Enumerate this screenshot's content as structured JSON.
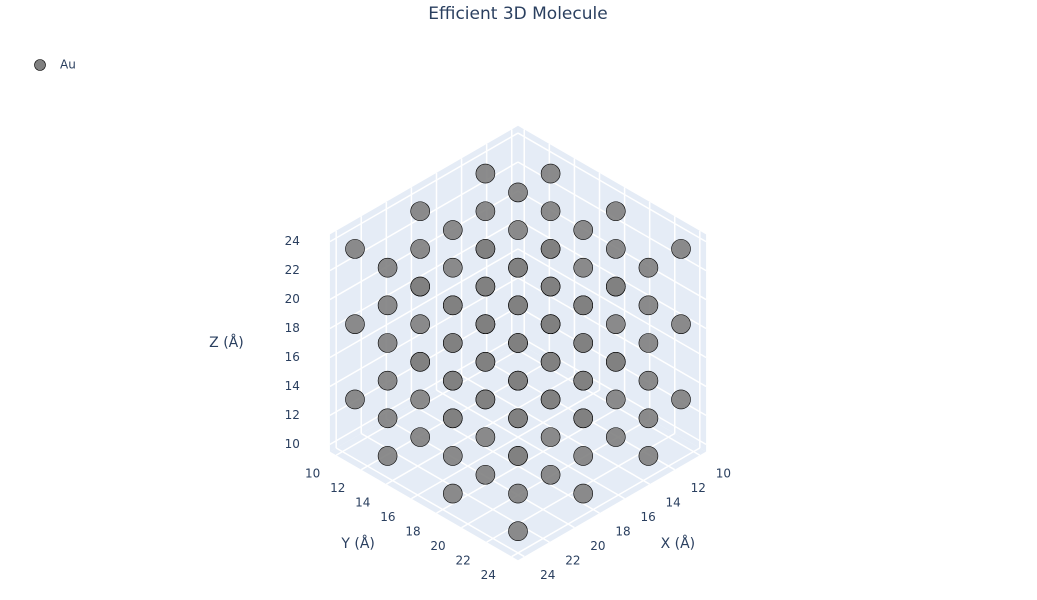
{
  "chart_data": {
    "type": "scatter3d",
    "title": "Efficient 3D Molecule",
    "xaxis_title": "X (Å)",
    "yaxis_title": "Y (Å)",
    "zaxis_title": "Z (Å)",
    "xlim": [
      9.5,
      24.5
    ],
    "ylim": [
      9.5,
      24.5
    ],
    "zlim": [
      9.5,
      24.5
    ],
    "xticks": [
      10,
      12,
      14,
      16,
      18,
      20,
      22,
      24
    ],
    "yticks": [
      10,
      12,
      14,
      16,
      18,
      20,
      22,
      24
    ],
    "zticks": [
      10,
      12,
      14,
      16,
      18,
      20,
      22,
      24
    ],
    "grid": true,
    "legend": "top-left",
    "series": [
      {
        "name": "Au",
        "color": "#808080",
        "x": [
          10,
          10,
          10,
          10,
          10,
          10,
          10,
          10,
          10,
          10,
          10,
          10,
          10,
          10,
          10,
          10,
          10,
          10,
          12.6,
          12.6,
          12.6,
          12.6,
          12.6,
          12.6,
          12.6,
          12.6,
          12.6,
          12.6,
          12.6,
          12.6,
          12.6,
          12.6,
          12.6,
          12.6,
          12.6,
          12.6,
          15.2,
          15.2,
          15.2,
          15.2,
          15.2,
          15.2,
          15.2,
          15.2,
          15.2,
          15.2,
          15.2,
          15.2,
          15.2,
          15.2,
          15.2,
          15.2,
          15.2,
          15.2,
          17.8,
          17.8,
          17.8,
          17.8,
          17.8,
          17.8,
          17.8,
          17.8,
          17.8,
          17.8,
          17.8,
          17.8,
          17.8,
          17.8,
          17.8,
          17.8,
          17.8,
          17.8,
          20.4,
          20.4,
          20.4,
          20.4,
          20.4,
          20.4,
          20.4,
          20.4,
          20.4,
          20.4,
          20.4,
          20.4,
          20.4,
          20.4,
          20.4,
          20.4,
          20.4,
          20.4,
          23,
          23,
          23,
          23,
          23,
          23,
          23,
          23,
          23,
          23,
          23,
          23,
          23,
          23,
          23,
          23,
          23,
          23
        ],
        "y": [
          10,
          10,
          10,
          12.6,
          12.6,
          12.6,
          15.2,
          15.2,
          15.2,
          17.8,
          17.8,
          17.8,
          20.4,
          20.4,
          20.4,
          23,
          23,
          23,
          10,
          10,
          10,
          12.6,
          12.6,
          12.6,
          15.2,
          15.2,
          15.2,
          17.8,
          17.8,
          17.8,
          20.4,
          20.4,
          20.4,
          23,
          23,
          23,
          10,
          10,
          10,
          12.6,
          12.6,
          12.6,
          15.2,
          15.2,
          15.2,
          17.8,
          17.8,
          17.8,
          20.4,
          20.4,
          20.4,
          23,
          23,
          23,
          10,
          10,
          10,
          12.6,
          12.6,
          12.6,
          15.2,
          15.2,
          15.2,
          17.8,
          17.8,
          17.8,
          20.4,
          20.4,
          20.4,
          23,
          23,
          23,
          10,
          10,
          10,
          12.6,
          12.6,
          12.6,
          15.2,
          15.2,
          15.2,
          17.8,
          17.8,
          17.8,
          20.4,
          20.4,
          20.4,
          23,
          23,
          23,
          10,
          10,
          10,
          12.6,
          12.6,
          12.6,
          15.2,
          15.2,
          15.2,
          17.8,
          17.8,
          17.8,
          20.4,
          20.4,
          20.4,
          23,
          23,
          23
        ],
        "z": [
          10,
          15.2,
          20.4,
          12.6,
          17.8,
          23,
          10,
          15.2,
          20.4,
          12.6,
          17.8,
          23,
          10,
          15.2,
          20.4,
          12.6,
          17.8,
          23,
          12.6,
          17.8,
          23,
          10,
          15.2,
          20.4,
          12.6,
          17.8,
          23,
          10,
          15.2,
          20.4,
          12.6,
          17.8,
          23,
          10,
          15.2,
          20.4,
          10,
          15.2,
          20.4,
          12.6,
          17.8,
          23,
          10,
          15.2,
          20.4,
          12.6,
          17.8,
          23,
          10,
          15.2,
          20.4,
          12.6,
          17.8,
          23,
          12.6,
          17.8,
          23,
          10,
          15.2,
          20.4,
          12.6,
          17.8,
          23,
          10,
          15.2,
          20.4,
          12.6,
          17.8,
          23,
          10,
          15.2,
          20.4,
          10,
          15.2,
          20.4,
          12.6,
          17.8,
          23,
          10,
          15.2,
          20.4,
          12.6,
          17.8,
          23,
          10,
          15.2,
          20.4,
          12.6,
          17.8,
          23,
          12.6,
          17.8,
          23,
          10,
          15.2,
          20.4,
          12.6,
          17.8,
          23,
          10,
          15.2,
          20.4,
          12.6,
          17.8,
          23,
          10,
          15.2,
          20.4
        ]
      }
    ]
  }
}
